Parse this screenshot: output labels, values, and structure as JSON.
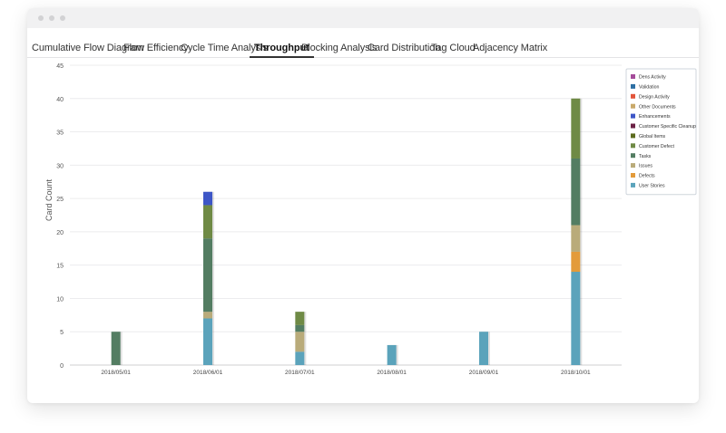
{
  "tabs": [
    {
      "label": "Cumulative Flow Diagram"
    },
    {
      "label": "Flow Efficiency"
    },
    {
      "label": "Cycle Time Analysis"
    },
    {
      "label": "Throughput",
      "active": true
    },
    {
      "label": "Blocking Analysis"
    },
    {
      "label": "Card Distribution"
    },
    {
      "label": "Tag Cloud"
    },
    {
      "label": "Adjacency Matrix"
    }
  ],
  "chart_data": {
    "type": "bar",
    "stacked": true,
    "ylabel": "Card Count",
    "xlabel": "",
    "ylim": [
      0,
      45
    ],
    "yticks": [
      0,
      5,
      10,
      15,
      20,
      25,
      30,
      35,
      40,
      45
    ],
    "grid": true,
    "legend_position": "top-right",
    "categories": [
      "2018/05/01",
      "2018/06/01",
      "2018/07/01",
      "2018/08/01",
      "2018/09/01",
      "2018/10/01"
    ],
    "series": [
      {
        "name": "User Stories",
        "color": "#5ba3bb",
        "values": [
          0,
          7,
          2,
          3,
          5,
          14
        ]
      },
      {
        "name": "Defects",
        "color": "#e39b3a",
        "values": [
          0,
          0,
          0,
          0,
          0,
          3
        ]
      },
      {
        "name": "Issues",
        "color": "#b9ab7a",
        "values": [
          0,
          1,
          3,
          0,
          0,
          4
        ]
      },
      {
        "name": "Tasks",
        "color": "#537d62",
        "values": [
          5,
          11,
          1,
          0,
          0,
          10
        ]
      },
      {
        "name": "Customer Defect",
        "color": "#6f8a45",
        "values": [
          0,
          5,
          2,
          0,
          0,
          9
        ]
      },
      {
        "name": "Global Items",
        "color": "#5c6b1e",
        "values": [
          0,
          0,
          0,
          0,
          0,
          0
        ]
      },
      {
        "name": "Customer Specific Cleanup",
        "color": "#6b2145",
        "values": [
          0,
          0,
          0,
          0,
          0,
          0
        ]
      },
      {
        "name": "Enhancements",
        "color": "#3d56c7",
        "values": [
          0,
          2,
          0,
          0,
          0,
          0
        ]
      },
      {
        "name": "Other Documents",
        "color": "#c9a96a",
        "values": [
          0,
          0,
          0,
          0,
          0,
          0
        ]
      },
      {
        "name": "Design Activity",
        "color": "#e2553b",
        "values": [
          0,
          0,
          0,
          0,
          0,
          0
        ]
      },
      {
        "name": "Validation",
        "color": "#2d6fa3",
        "values": [
          0,
          0,
          0,
          0,
          0,
          0
        ]
      },
      {
        "name": "Dens Activity",
        "color": "#a54c9a",
        "values": [
          0,
          0,
          0,
          0,
          0,
          0
        ]
      }
    ]
  }
}
